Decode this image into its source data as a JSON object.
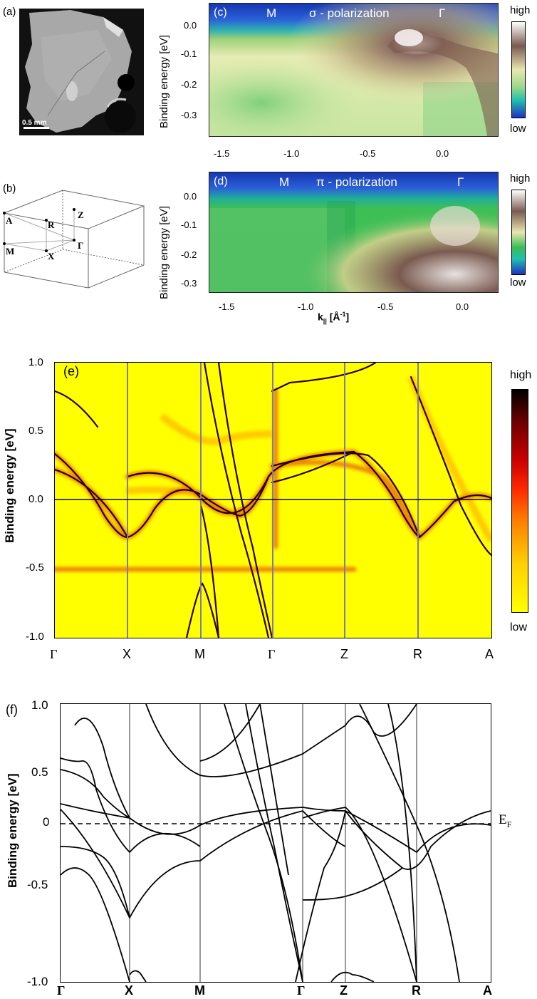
{
  "panel_a": {
    "label": "(a)",
    "scalebar_text": "0.5 mm"
  },
  "panel_b": {
    "label": "(b)",
    "points": [
      "Z",
      "A",
      "R",
      "M",
      "X",
      "Γ"
    ]
  },
  "panel_c": {
    "label": "(c)",
    "heading_left": "M",
    "heading_mid": "σ - polarization",
    "heading_right": "Γ",
    "ylabel": "Binding energy [eV]",
    "yticks": [
      "0.0",
      "-0.1",
      "-0.2",
      "-0.3"
    ],
    "xticks": [
      "-1.5",
      "-1.0",
      "-0.5",
      "0.0"
    ],
    "colorbar_high": "high",
    "colorbar_low": "low"
  },
  "panel_d": {
    "label": "(d)",
    "heading_left": "M",
    "heading_mid": "π - polarization",
    "heading_right": "Γ",
    "ylabel": "Binding energy [eV]",
    "yticks": [
      "0.0",
      "-0.1",
      "-0.2",
      "-0.3"
    ],
    "xticks": [
      "-1.5",
      "-1.0",
      "-0.5",
      "0.0"
    ],
    "xlabel_main": "k",
    "xlabel_sub": "||",
    "xlabel_unit": " [Å",
    "xlabel_sup": "-1",
    "xlabel_end": "]",
    "colorbar_high": "high",
    "colorbar_low": "low"
  },
  "panel_e": {
    "label": "(e)",
    "ylabel": "Binding energy [eV]",
    "yticks": [
      "1.0",
      "0.5",
      "0.0",
      "-0.5",
      "-1.0"
    ],
    "kpoints": [
      "Γ",
      "X",
      "M",
      "Γ",
      "Z",
      "R",
      "A"
    ],
    "colorbar_high": "high",
    "colorbar_low": "low"
  },
  "panel_f": {
    "label": "(f)",
    "ylabel": "Binding energy [eV]",
    "yticks": [
      "1.0",
      "0.5",
      "0",
      "-0.5",
      "-1.0"
    ],
    "kpoints": [
      "Γ",
      "X",
      "M",
      "Γ",
      "Z",
      "R",
      "A"
    ],
    "fermi_label": "E",
    "fermi_sub": "F"
  },
  "colors": {
    "arpes_blue": "#1f3fb8",
    "band_dark": "#2a0000",
    "band_red": "#d21414",
    "bg_yellow": "#ffff00",
    "hsline": "#7d7daa"
  }
}
